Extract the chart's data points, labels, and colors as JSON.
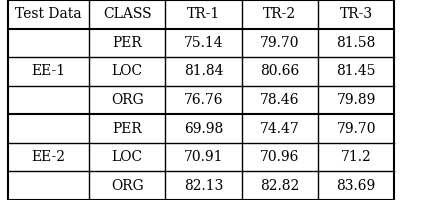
{
  "headers": [
    "Test Data",
    "CLASS",
    "TR-1",
    "TR-2",
    "TR-3"
  ],
  "rows": [
    [
      "EE-1",
      "PER",
      "75.14",
      "79.70",
      "81.58"
    ],
    [
      "EE-1",
      "LOC",
      "81.84",
      "80.66",
      "81.45"
    ],
    [
      "EE-1",
      "ORG",
      "76.76",
      "78.46",
      "79.89"
    ],
    [
      "EE-2",
      "PER",
      "69.98",
      "74.47",
      "79.70"
    ],
    [
      "EE-2",
      "LOC",
      "70.91",
      "70.96",
      "71.2"
    ],
    [
      "EE-2",
      "ORG",
      "82.13",
      "82.82",
      "83.69"
    ]
  ],
  "background_color": "#ffffff",
  "line_color": "#000000",
  "font_size": 10,
  "header_font_size": 10,
  "col_starts": [
    0.02,
    0.21,
    0.39,
    0.57,
    0.75
  ],
  "col_ends": [
    0.21,
    0.39,
    0.57,
    0.75,
    0.93
  ]
}
